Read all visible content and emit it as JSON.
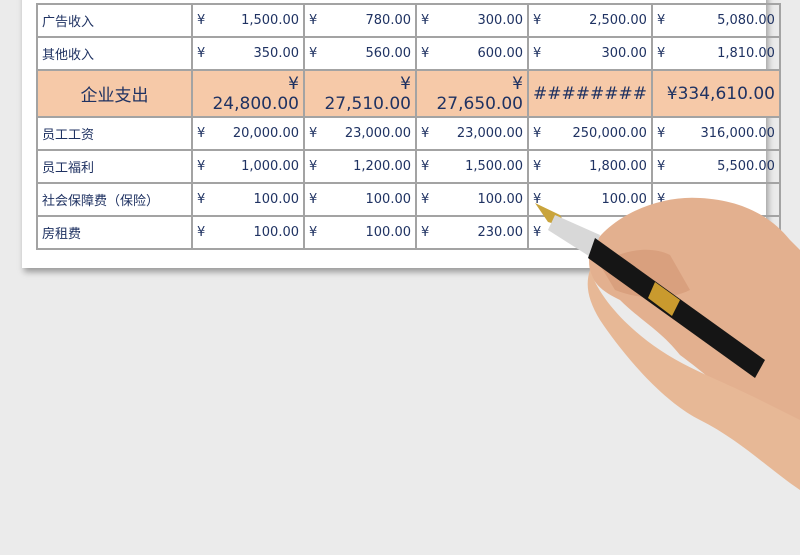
{
  "table": {
    "currency": "¥",
    "rows": [
      {
        "label": "广告收入",
        "values": [
          "1,500.00",
          "780.00",
          "300.00",
          "2,500.00",
          "5,080.00"
        ]
      },
      {
        "label": "其他收入",
        "values": [
          "350.00",
          "560.00",
          "600.00",
          "300.00",
          "1,810.00"
        ]
      },
      {
        "label": "企业支出",
        "values": [
          "24,800.00",
          "27,510.00",
          "27,650.00",
          "########",
          "334,610.00"
        ],
        "highlight": true
      },
      {
        "label": "员工工资",
        "values": [
          "20,000.00",
          "23,000.00",
          "23,000.00",
          "250,000.00",
          "316,000.00"
        ]
      },
      {
        "label": "员工福利",
        "values": [
          "1,000.00",
          "1,200.00",
          "1,500.00",
          "1,800.00",
          "5,500.00"
        ]
      },
      {
        "label": "社会保障费（保险）",
        "values": [
          "100.00",
          "100.00",
          "100.00",
          "100.00",
          ""
        ]
      },
      {
        "label": "房租费",
        "values": [
          "100.00",
          "100.00",
          "230.00",
          "",
          ""
        ]
      }
    ]
  },
  "colors": {
    "highlight": "#f6c9a8",
    "text": "#1f3262",
    "border": "#a3a3a3",
    "background": "#ebebeb"
  }
}
